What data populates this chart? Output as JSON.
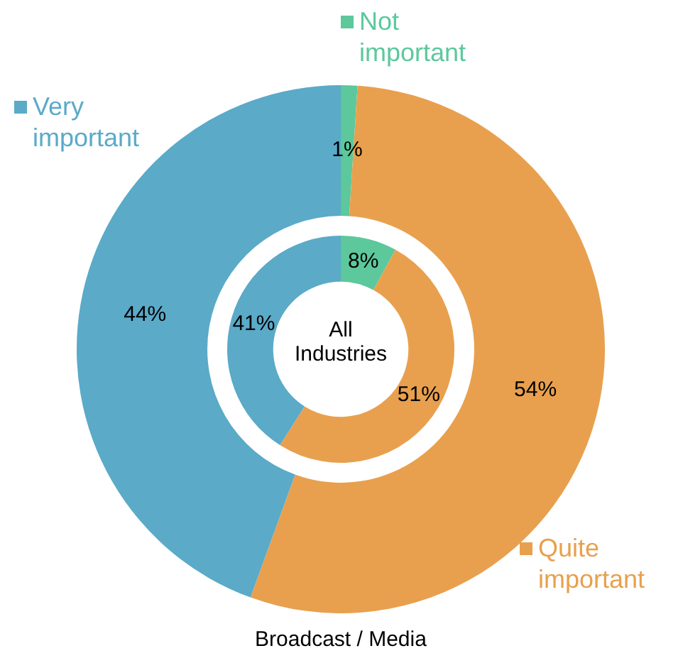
{
  "chart_data": {
    "type": "donut",
    "categories": [
      "Not important",
      "Quite important",
      "Very important"
    ],
    "colors": [
      "#5cc89c",
      "#e8a04e",
      "#5aaac8"
    ],
    "series": [
      {
        "name": "All Industries",
        "values": [
          8,
          51,
          41
        ],
        "value_labels": [
          "8%",
          "51%",
          "41%"
        ]
      },
      {
        "name": "Broadcast / Media",
        "values": [
          1,
          54,
          44
        ],
        "value_labels": [
          "1%",
          "54%",
          "44%"
        ]
      }
    ],
    "legend": "top"
  }
}
